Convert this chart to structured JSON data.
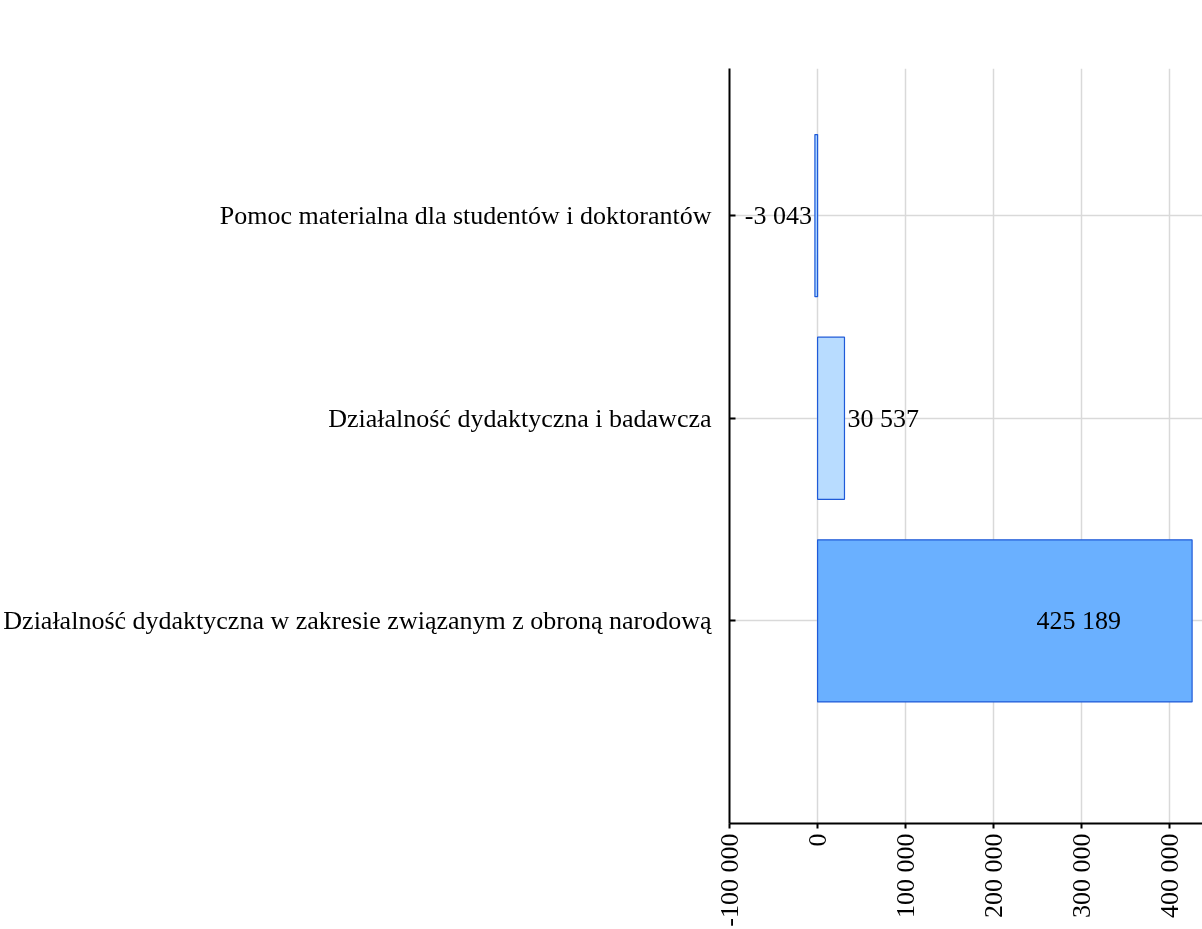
{
  "chart_data": {
    "type": "bar",
    "orientation": "horizontal",
    "categories": [
      "Pomoc materialna dla studentów i doktorantów",
      "Działalność dydaktyczna i badawcza",
      "Działalność dydaktyczna w zakresie związanym z obroną narodową"
    ],
    "values": [
      -3043,
      30537,
      425189
    ],
    "colors": [
      "#a9d2ff",
      "#b8dcff",
      "#6ab0ff"
    ],
    "value_labels": [
      "-3 043",
      "30 537",
      "425 189"
    ],
    "xlim": [
      -100000,
      437000
    ],
    "xticks": [
      {
        "value": -100000,
        "label": "-100 000"
      },
      0,
      {
        "value": 100000,
        "label": "100 000"
      },
      {
        "value": 200000,
        "label": "200 000"
      },
      {
        "value": 300000,
        "label": "300 000"
      },
      {
        "value": 400000,
        "label": "400 000"
      }
    ],
    "grid": true
  }
}
